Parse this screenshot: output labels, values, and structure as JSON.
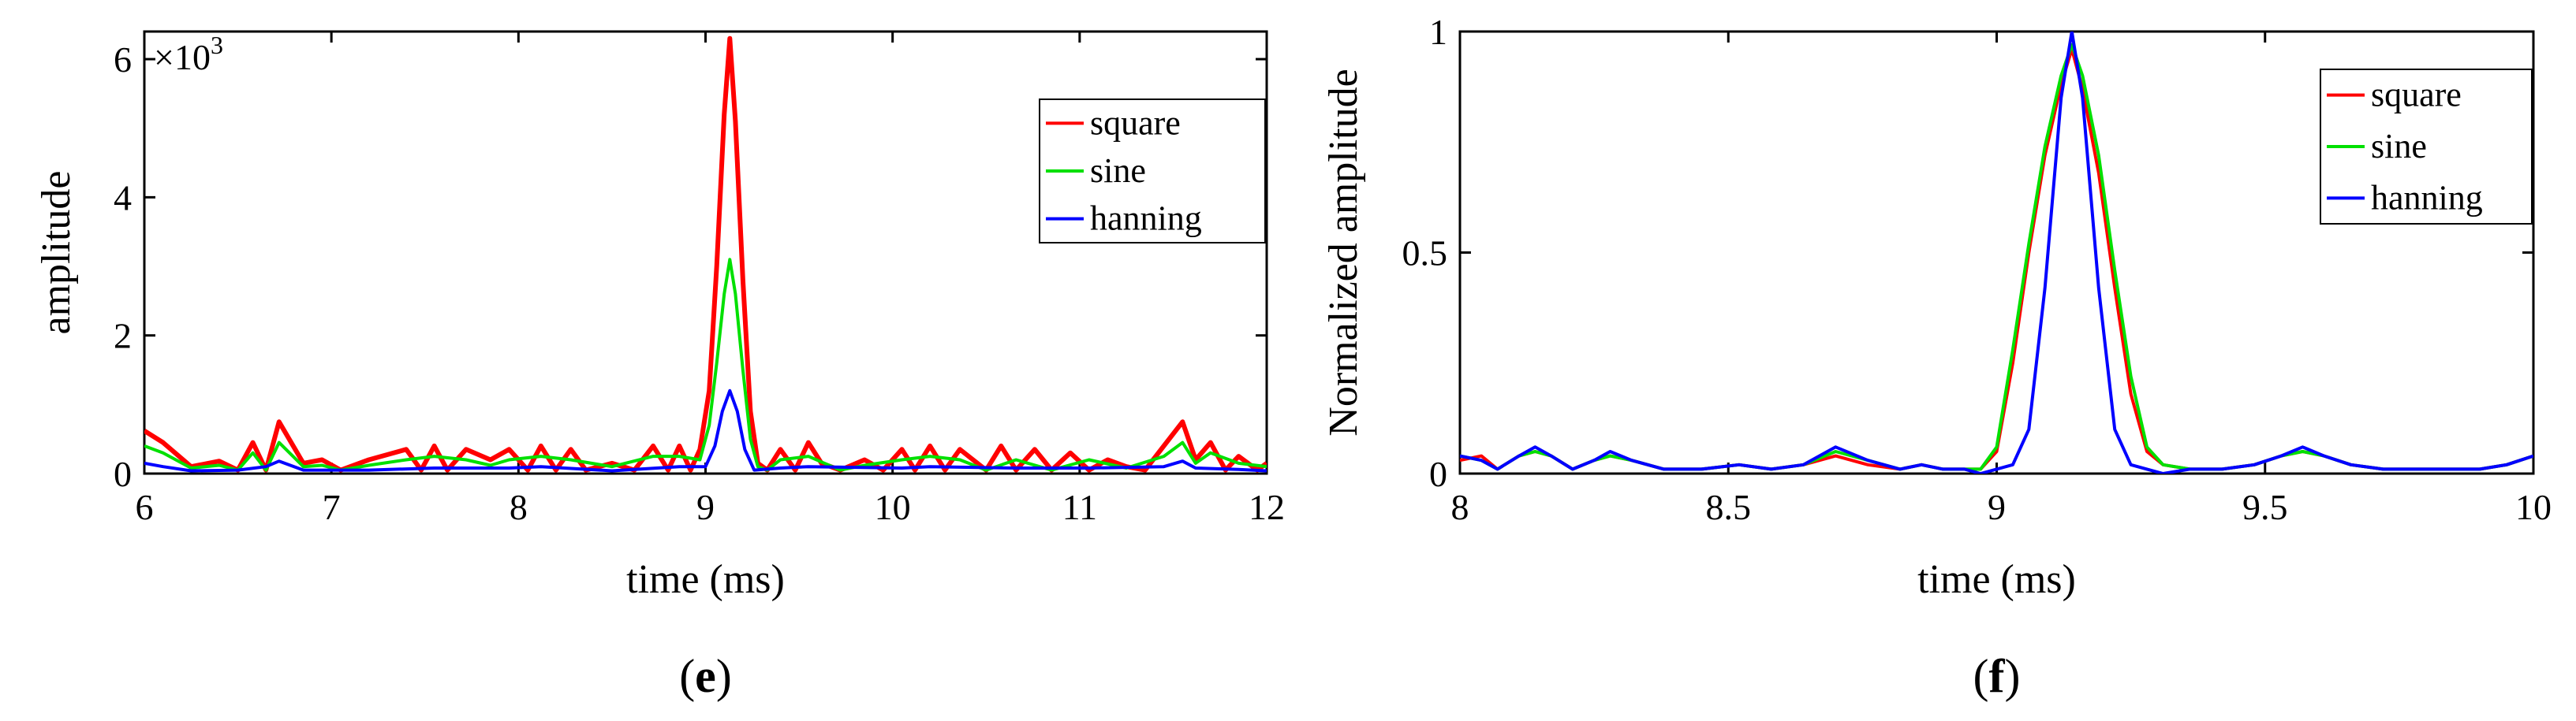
{
  "chart_data": [
    {
      "type": "line",
      "panel_label": "e",
      "xlabel": "time (ms)",
      "ylabel": "amplitude",
      "exponent_label": "×10",
      "exponent_power": "3",
      "xlim": [
        6,
        12
      ],
      "ylim": [
        0,
        6.4
      ],
      "xticks": [
        6,
        7,
        8,
        9,
        10,
        11,
        12
      ],
      "yticks": [
        0,
        2,
        4,
        6
      ],
      "legend_position": "top-right",
      "grid": false,
      "series": [
        {
          "name": "square",
          "color": "#ff0000",
          "x": [
            6.0,
            6.1,
            6.25,
            6.4,
            6.5,
            6.58,
            6.65,
            6.72,
            6.85,
            6.95,
            7.05,
            7.2,
            7.4,
            7.48,
            7.55,
            7.62,
            7.72,
            7.85,
            7.95,
            8.05,
            8.12,
            8.2,
            8.28,
            8.36,
            8.5,
            8.62,
            8.72,
            8.8,
            8.86,
            8.92,
            8.97,
            9.02,
            9.06,
            9.1,
            9.13,
            9.16,
            9.2,
            9.24,
            9.28,
            9.33,
            9.4,
            9.48,
            9.55,
            9.62,
            9.72,
            9.85,
            9.95,
            10.05,
            10.12,
            10.2,
            10.28,
            10.36,
            10.5,
            10.58,
            10.66,
            10.76,
            10.85,
            10.95,
            11.05,
            11.15,
            11.25,
            11.35,
            11.45,
            11.55,
            11.62,
            11.7,
            11.78,
            11.85,
            11.95,
            12.0
          ],
          "y": [
            0.62,
            0.45,
            0.1,
            0.18,
            0.05,
            0.45,
            0.05,
            0.75,
            0.15,
            0.2,
            0.05,
            0.2,
            0.35,
            0.05,
            0.4,
            0.05,
            0.35,
            0.2,
            0.35,
            0.05,
            0.4,
            0.05,
            0.35,
            0.05,
            0.15,
            0.05,
            0.4,
            0.05,
            0.4,
            0.05,
            0.35,
            1.2,
            3.0,
            5.2,
            6.3,
            5.1,
            2.8,
            0.9,
            0.15,
            0.05,
            0.35,
            0.05,
            0.45,
            0.15,
            0.05,
            0.2,
            0.05,
            0.35,
            0.05,
            0.4,
            0.05,
            0.35,
            0.05,
            0.4,
            0.05,
            0.35,
            0.05,
            0.3,
            0.05,
            0.2,
            0.1,
            0.05,
            0.4,
            0.75,
            0.2,
            0.45,
            0.05,
            0.25,
            0.05,
            0.15
          ]
        },
        {
          "name": "sine",
          "color": "#00e000",
          "x": [
            6.0,
            6.1,
            6.25,
            6.4,
            6.5,
            6.58,
            6.65,
            6.72,
            6.85,
            6.95,
            7.05,
            7.2,
            7.4,
            7.55,
            7.72,
            7.85,
            7.95,
            8.12,
            8.28,
            8.5,
            8.72,
            8.86,
            8.97,
            9.02,
            9.06,
            9.1,
            9.13,
            9.16,
            9.2,
            9.24,
            9.28,
            9.33,
            9.4,
            9.55,
            9.72,
            9.85,
            10.05,
            10.2,
            10.36,
            10.5,
            10.66,
            10.85,
            11.05,
            11.25,
            11.45,
            11.55,
            11.62,
            11.7,
            11.85,
            12.0
          ],
          "y": [
            0.4,
            0.3,
            0.08,
            0.12,
            0.05,
            0.3,
            0.05,
            0.45,
            0.1,
            0.12,
            0.05,
            0.12,
            0.2,
            0.25,
            0.2,
            0.12,
            0.2,
            0.25,
            0.2,
            0.1,
            0.25,
            0.25,
            0.2,
            0.7,
            1.6,
            2.6,
            3.1,
            2.6,
            1.5,
            0.5,
            0.1,
            0.05,
            0.2,
            0.25,
            0.05,
            0.12,
            0.2,
            0.25,
            0.2,
            0.05,
            0.2,
            0.05,
            0.2,
            0.08,
            0.25,
            0.45,
            0.15,
            0.3,
            0.15,
            0.1
          ]
        },
        {
          "name": "hanning",
          "color": "#0000ff",
          "x": [
            6.0,
            6.1,
            6.25,
            6.5,
            6.65,
            6.72,
            6.85,
            7.2,
            7.55,
            7.95,
            8.12,
            8.5,
            8.86,
            9.0,
            9.05,
            9.09,
            9.13,
            9.17,
            9.21,
            9.26,
            9.4,
            9.55,
            10.05,
            10.2,
            10.66,
            11.05,
            11.45,
            11.55,
            11.62,
            11.85,
            12.0
          ],
          "y": [
            0.15,
            0.1,
            0.04,
            0.05,
            0.1,
            0.18,
            0.05,
            0.05,
            0.08,
            0.08,
            0.1,
            0.04,
            0.1,
            0.1,
            0.4,
            0.9,
            1.2,
            0.9,
            0.35,
            0.05,
            0.08,
            0.1,
            0.08,
            0.1,
            0.08,
            0.08,
            0.1,
            0.18,
            0.08,
            0.06,
            0.04
          ]
        }
      ]
    },
    {
      "type": "line",
      "panel_label": "f",
      "xlabel": "time (ms)",
      "ylabel": "Normalized amplitude",
      "xlim": [
        8,
        10
      ],
      "ylim": [
        0,
        1
      ],
      "xticks": [
        8,
        8.5,
        9,
        9.5,
        10
      ],
      "xtick_labels": [
        "8",
        "8.5",
        "9",
        "9.5",
        "10"
      ],
      "yticks": [
        0,
        0.5,
        1
      ],
      "ytick_labels": [
        "0",
        "0.5",
        "1"
      ],
      "legend_position": "top-right",
      "grid": false,
      "series": [
        {
          "name": "square",
          "color": "#ff0000",
          "x": [
            8.0,
            8.04,
            8.07,
            8.11,
            8.14,
            8.17,
            8.21,
            8.25,
            8.28,
            8.32,
            8.38,
            8.45,
            8.52,
            8.58,
            8.64,
            8.7,
            8.76,
            8.82,
            8.86,
            8.9,
            8.94,
            8.97,
            9.0,
            9.03,
            9.06,
            9.09,
            9.12,
            9.14,
            9.16,
            9.19,
            9.22,
            9.25,
            9.28,
            9.31,
            9.36,
            9.42,
            9.48,
            9.53,
            9.57,
            9.61,
            9.66,
            9.72,
            9.78,
            9.84,
            9.9,
            9.95,
            10.0
          ],
          "y": [
            0.03,
            0.04,
            0.01,
            0.04,
            0.05,
            0.04,
            0.01,
            0.03,
            0.04,
            0.03,
            0.01,
            0.01,
            0.02,
            0.01,
            0.02,
            0.04,
            0.02,
            0.01,
            0.02,
            0.01,
            0.01,
            0.01,
            0.05,
            0.25,
            0.5,
            0.72,
            0.88,
            0.96,
            0.87,
            0.68,
            0.42,
            0.18,
            0.05,
            0.02,
            0.01,
            0.01,
            0.02,
            0.04,
            0.05,
            0.04,
            0.02,
            0.01,
            0.01,
            0.01,
            0.01,
            0.02,
            0.04
          ]
        },
        {
          "name": "sine",
          "color": "#00e000",
          "x": [
            8.0,
            8.04,
            8.07,
            8.11,
            8.14,
            8.17,
            8.21,
            8.25,
            8.28,
            8.32,
            8.38,
            8.45,
            8.52,
            8.58,
            8.64,
            8.7,
            8.76,
            8.82,
            8.86,
            8.9,
            8.94,
            8.97,
            9.0,
            9.03,
            9.06,
            9.09,
            9.12,
            9.14,
            9.16,
            9.19,
            9.22,
            9.25,
            9.28,
            9.31,
            9.36,
            9.42,
            9.48,
            9.53,
            9.57,
            9.61,
            9.66,
            9.72,
            9.78,
            9.84,
            9.9,
            9.95,
            10.0
          ],
          "y": [
            0.04,
            0.03,
            0.01,
            0.04,
            0.05,
            0.04,
            0.01,
            0.03,
            0.04,
            0.03,
            0.01,
            0.01,
            0.02,
            0.01,
            0.02,
            0.05,
            0.03,
            0.01,
            0.02,
            0.01,
            0.01,
            0.01,
            0.06,
            0.28,
            0.52,
            0.74,
            0.9,
            0.97,
            0.9,
            0.72,
            0.46,
            0.22,
            0.06,
            0.02,
            0.01,
            0.01,
            0.02,
            0.04,
            0.05,
            0.04,
            0.02,
            0.01,
            0.01,
            0.01,
            0.01,
            0.02,
            0.04
          ]
        },
        {
          "name": "hanning",
          "color": "#0000ff",
          "x": [
            8.0,
            8.04,
            8.07,
            8.11,
            8.14,
            8.17,
            8.21,
            8.25,
            8.28,
            8.32,
            8.38,
            8.45,
            8.52,
            8.58,
            8.64,
            8.7,
            8.76,
            8.82,
            8.86,
            8.9,
            8.94,
            8.97,
            9.0,
            9.03,
            9.06,
            9.09,
            9.12,
            9.14,
            9.16,
            9.19,
            9.22,
            9.25,
            9.28,
            9.31,
            9.36,
            9.42,
            9.48,
            9.53,
            9.57,
            9.61,
            9.66,
            9.72,
            9.78,
            9.84,
            9.9,
            9.95,
            10.0
          ],
          "y": [
            0.04,
            0.03,
            0.01,
            0.04,
            0.06,
            0.04,
            0.01,
            0.03,
            0.05,
            0.03,
            0.01,
            0.01,
            0.02,
            0.01,
            0.02,
            0.06,
            0.03,
            0.01,
            0.02,
            0.01,
            0.01,
            0.0,
            0.01,
            0.02,
            0.1,
            0.42,
            0.85,
            1.0,
            0.85,
            0.42,
            0.1,
            0.02,
            0.01,
            0.0,
            0.01,
            0.01,
            0.02,
            0.04,
            0.06,
            0.04,
            0.02,
            0.01,
            0.01,
            0.01,
            0.01,
            0.02,
            0.04
          ]
        }
      ]
    }
  ]
}
